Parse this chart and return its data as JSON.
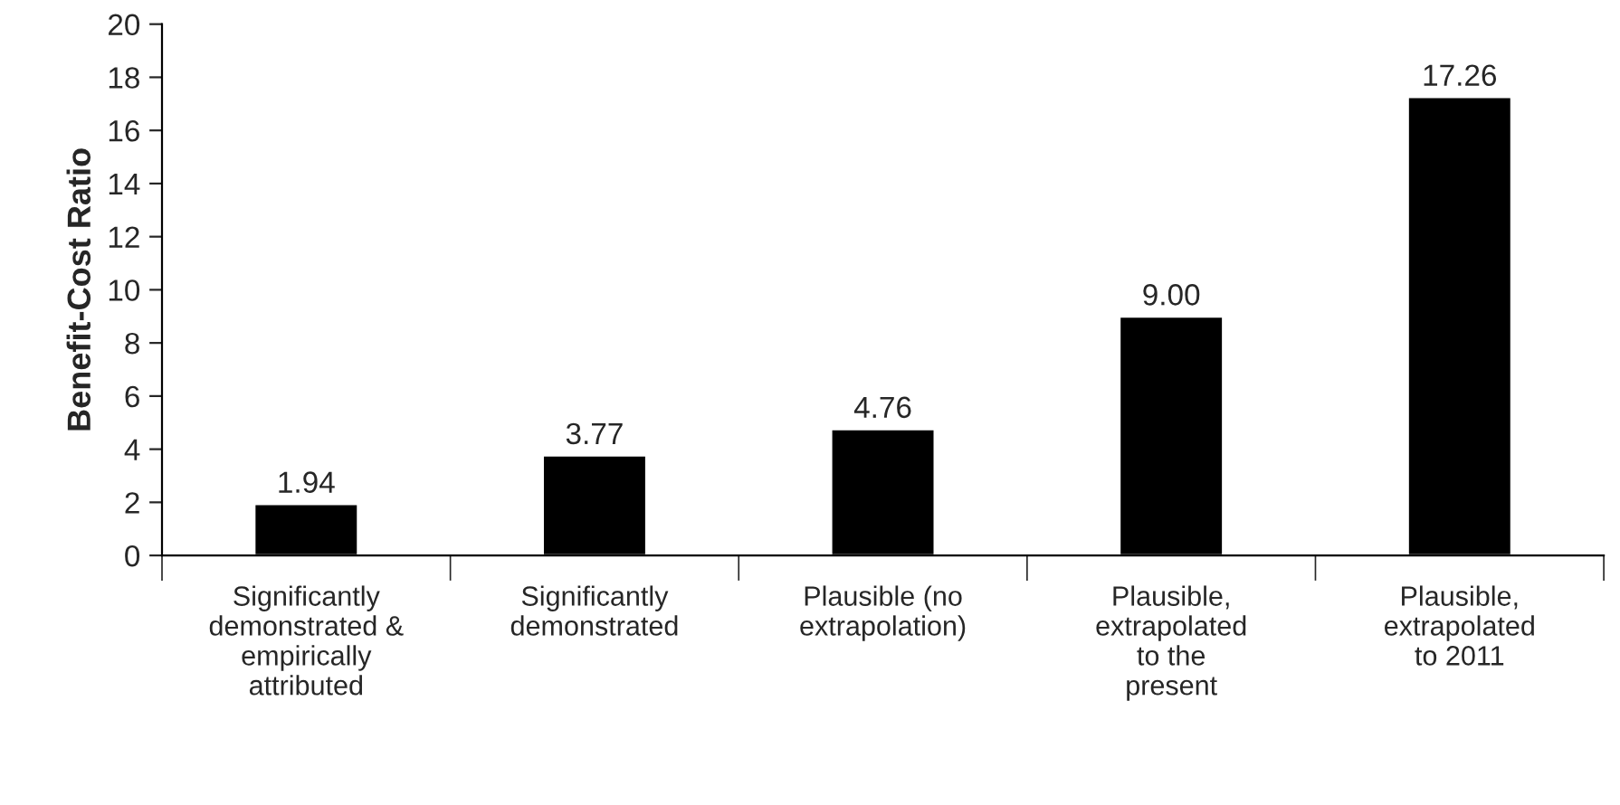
{
  "chart_data": {
    "type": "bar",
    "ylabel": "Benefit-Cost Ratio",
    "categories": [
      "Significantly\ndemonstrated &\nempirically\nattributed",
      "Significantly\ndemonstrated",
      "Plausible (no\nextrapolation)",
      "Plausible,\nextrapolated\nto the\npresent",
      "Plausible,\nextrapolated\nto 2011"
    ],
    "values": [
      1.94,
      3.77,
      4.76,
      9.0,
      17.26
    ],
    "value_labels": [
      "1.94",
      "3.77",
      "4.76",
      "9.00",
      "17.26"
    ],
    "color": "#000000",
    "ylim": [
      0,
      20
    ],
    "yticks": [
      0,
      2,
      4,
      6,
      8,
      10,
      12,
      14,
      16,
      18,
      20
    ],
    "grid": false
  }
}
